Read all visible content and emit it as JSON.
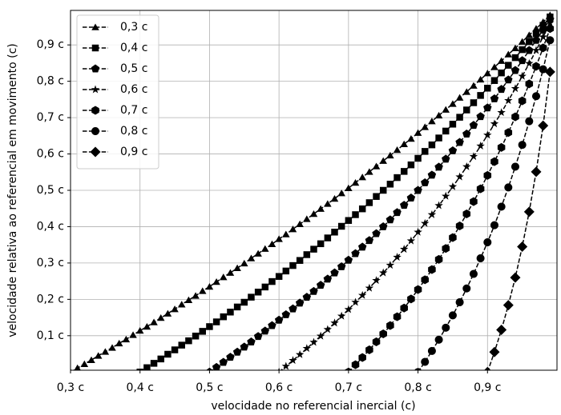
{
  "chart_data": {
    "type": "line",
    "xlabel": "velocidade no referencial inercial (c)",
    "ylabel": "velocidade relativa ao referencial em movimento (c)",
    "xlim": [
      0.3,
      1.0
    ],
    "ylim": [
      0.005,
      0.995
    ],
    "xticks": [
      {
        "value": 0.3,
        "label": "0,3 c"
      },
      {
        "value": 0.4,
        "label": "0,4 c"
      },
      {
        "value": 0.5,
        "label": "0,5 c"
      },
      {
        "value": 0.6,
        "label": "0,6 c"
      },
      {
        "value": 0.7,
        "label": "0,7 c"
      },
      {
        "value": 0.8,
        "label": "0,8 c"
      },
      {
        "value": 0.9,
        "label": "0,9 c"
      }
    ],
    "yticks": [
      {
        "value": 0.1,
        "label": "0,1 c"
      },
      {
        "value": 0.2,
        "label": "0,2 c"
      },
      {
        "value": 0.3,
        "label": "0,3 c"
      },
      {
        "value": 0.4,
        "label": "0,4 c"
      },
      {
        "value": 0.5,
        "label": "0,5 c"
      },
      {
        "value": 0.6,
        "label": "0,6 c"
      },
      {
        "value": 0.7,
        "label": "0,7 c"
      },
      {
        "value": 0.8,
        "label": "0,8 c"
      },
      {
        "value": 0.9,
        "label": "0,9 c"
      }
    ],
    "grid": true,
    "legend": "upper left",
    "series": [
      {
        "name": "0,3 c",
        "color": "#000000",
        "marker": "triangle",
        "x": [
          0.3,
          0.31,
          0.32,
          0.33,
          0.34,
          0.35,
          0.36,
          0.37,
          0.38,
          0.39,
          0.4,
          0.41,
          0.42,
          0.43,
          0.44,
          0.45,
          0.46,
          0.47,
          0.48,
          0.49,
          0.5,
          0.51,
          0.52,
          0.53,
          0.54,
          0.55,
          0.56,
          0.57,
          0.58,
          0.59,
          0.6,
          0.61,
          0.62,
          0.63,
          0.64,
          0.65,
          0.66,
          0.67,
          0.68,
          0.69,
          0.7,
          0.71,
          0.72,
          0.73,
          0.74,
          0.75,
          0.76,
          0.77,
          0.78,
          0.79,
          0.8,
          0.81,
          0.82,
          0.83,
          0.84,
          0.85,
          0.86,
          0.87,
          0.88,
          0.89,
          0.9,
          0.91,
          0.92,
          0.93,
          0.94,
          0.95,
          0.96,
          0.97,
          0.98,
          0.99
        ],
        "values": [
          0,
          0.011,
          0.022,
          0.033,
          0.045,
          0.056,
          0.067,
          0.079,
          0.09,
          0.102,
          0.114,
          0.125,
          0.137,
          0.149,
          0.161,
          0.173,
          0.186,
          0.198,
          0.21,
          0.223,
          0.235,
          0.248,
          0.261,
          0.273,
          0.286,
          0.299,
          0.313,
          0.326,
          0.339,
          0.352,
          0.366,
          0.379,
          0.393,
          0.407,
          0.421,
          0.435,
          0.449,
          0.463,
          0.477,
          0.492,
          0.506,
          0.521,
          0.536,
          0.551,
          0.566,
          0.581,
          0.596,
          0.611,
          0.627,
          0.642,
          0.658,
          0.674,
          0.69,
          0.706,
          0.722,
          0.738,
          0.755,
          0.771,
          0.788,
          0.805,
          0.822,
          0.839,
          0.856,
          0.874,
          0.891,
          0.909,
          0.927,
          0.945,
          0.963,
          0.982
        ]
      },
      {
        "name": "0,4 c",
        "color": "#000000",
        "marker": "square",
        "x": [
          0.4,
          0.41,
          0.42,
          0.43,
          0.44,
          0.45,
          0.46,
          0.47,
          0.48,
          0.49,
          0.5,
          0.51,
          0.52,
          0.53,
          0.54,
          0.55,
          0.56,
          0.57,
          0.58,
          0.59,
          0.6,
          0.61,
          0.62,
          0.63,
          0.64,
          0.65,
          0.66,
          0.67,
          0.68,
          0.69,
          0.7,
          0.71,
          0.72,
          0.73,
          0.74,
          0.75,
          0.76,
          0.77,
          0.78,
          0.79,
          0.8,
          0.81,
          0.82,
          0.83,
          0.84,
          0.85,
          0.86,
          0.87,
          0.88,
          0.89,
          0.9,
          0.91,
          0.92,
          0.93,
          0.94,
          0.95,
          0.96,
          0.97,
          0.98,
          0.99
        ],
        "values": [
          0,
          0.012,
          0.024,
          0.036,
          0.049,
          0.061,
          0.074,
          0.086,
          0.099,
          0.112,
          0.125,
          0.138,
          0.152,
          0.165,
          0.179,
          0.192,
          0.206,
          0.22,
          0.234,
          0.249,
          0.263,
          0.278,
          0.293,
          0.307,
          0.323,
          0.338,
          0.353,
          0.369,
          0.385,
          0.401,
          0.417,
          0.433,
          0.449,
          0.466,
          0.483,
          0.5,
          0.517,
          0.535,
          0.552,
          0.57,
          0.588,
          0.607,
          0.625,
          0.644,
          0.663,
          0.682,
          0.701,
          0.721,
          0.741,
          0.761,
          0.781,
          0.802,
          0.823,
          0.844,
          0.865,
          0.887,
          0.909,
          0.931,
          0.954,
          0.977
        ]
      },
      {
        "name": "0,5 c",
        "color": "#000000",
        "marker": "pentagon",
        "x": [
          0.5,
          0.51,
          0.52,
          0.53,
          0.54,
          0.55,
          0.56,
          0.57,
          0.58,
          0.59,
          0.6,
          0.61,
          0.62,
          0.63,
          0.64,
          0.65,
          0.66,
          0.67,
          0.68,
          0.69,
          0.7,
          0.71,
          0.72,
          0.73,
          0.74,
          0.75,
          0.76,
          0.77,
          0.78,
          0.79,
          0.8,
          0.81,
          0.82,
          0.83,
          0.84,
          0.85,
          0.86,
          0.87,
          0.88,
          0.89,
          0.9,
          0.91,
          0.92,
          0.93,
          0.94,
          0.95,
          0.96,
          0.97,
          0.98,
          0.99
        ],
        "values": [
          0,
          0.013,
          0.027,
          0.041,
          0.055,
          0.069,
          0.083,
          0.098,
          0.113,
          0.128,
          0.143,
          0.158,
          0.174,
          0.19,
          0.206,
          0.222,
          0.239,
          0.256,
          0.273,
          0.29,
          0.308,
          0.326,
          0.344,
          0.362,
          0.381,
          0.4,
          0.419,
          0.439,
          0.459,
          0.479,
          0.5,
          0.521,
          0.542,
          0.564,
          0.586,
          0.609,
          0.632,
          0.655,
          0.679,
          0.703,
          0.727,
          0.752,
          0.778,
          0.804,
          0.83,
          0.857,
          0.885,
          0.913,
          0.941,
          0.97
        ]
      },
      {
        "name": "0,6 c",
        "color": "#000000",
        "marker": "star",
        "x": [
          0.6,
          0.61,
          0.62,
          0.63,
          0.64,
          0.65,
          0.66,
          0.67,
          0.68,
          0.69,
          0.7,
          0.71,
          0.72,
          0.73,
          0.74,
          0.75,
          0.76,
          0.77,
          0.78,
          0.79,
          0.8,
          0.81,
          0.82,
          0.83,
          0.84,
          0.85,
          0.86,
          0.87,
          0.88,
          0.89,
          0.9,
          0.91,
          0.92,
          0.93,
          0.94,
          0.95,
          0.96,
          0.97,
          0.98,
          0.99
        ],
        "values": [
          0,
          0.016,
          0.032,
          0.048,
          0.065,
          0.082,
          0.099,
          0.117,
          0.135,
          0.154,
          0.172,
          0.192,
          0.211,
          0.231,
          0.252,
          0.273,
          0.294,
          0.316,
          0.338,
          0.361,
          0.385,
          0.409,
          0.433,
          0.458,
          0.484,
          0.51,
          0.537,
          0.565,
          0.593,
          0.622,
          0.652,
          0.683,
          0.714,
          0.747,
          0.78,
          0.814,
          0.849,
          0.885,
          0.922,
          0.961
        ]
      },
      {
        "name": "0,7 c",
        "color": "#000000",
        "marker": "hexagon",
        "x": [
          0.7,
          0.71,
          0.72,
          0.73,
          0.74,
          0.75,
          0.76,
          0.77,
          0.78,
          0.79,
          0.8,
          0.81,
          0.82,
          0.83,
          0.84,
          0.85,
          0.86,
          0.87,
          0.88,
          0.89,
          0.9,
          0.91,
          0.92,
          0.93,
          0.94,
          0.95,
          0.96,
          0.97,
          0.98,
          0.99
        ],
        "values": [
          0,
          0.02,
          0.04,
          0.061,
          0.083,
          0.105,
          0.128,
          0.152,
          0.176,
          0.201,
          0.227,
          0.254,
          0.282,
          0.31,
          0.34,
          0.37,
          0.402,
          0.435,
          0.469,
          0.504,
          0.541,
          0.579,
          0.618,
          0.659,
          0.702,
          0.746,
          0.793,
          0.841,
          0.892,
          0.945
        ]
      },
      {
        "name": "0,8 c",
        "color": "#000000",
        "marker": "circle",
        "x": [
          0.8,
          0.81,
          0.82,
          0.83,
          0.84,
          0.85,
          0.86,
          0.87,
          0.88,
          0.89,
          0.9,
          0.91,
          0.92,
          0.93,
          0.94,
          0.95,
          0.96,
          0.97,
          0.98,
          0.99
        ],
        "values": [
          0,
          0.028,
          0.058,
          0.089,
          0.122,
          0.156,
          0.192,
          0.23,
          0.27,
          0.313,
          0.357,
          0.404,
          0.455,
          0.508,
          0.565,
          0.625,
          0.69,
          0.759,
          0.833,
          0.913
        ]
      },
      {
        "name": "0,9 c",
        "color": "#000000",
        "marker": "diamond",
        "x": [
          0.9,
          0.91,
          0.92,
          0.93,
          0.94,
          0.95,
          0.96,
          0.97,
          0.98,
          0.99
        ],
        "values": [
          0,
          0.055,
          0.116,
          0.184,
          0.26,
          0.345,
          0.441,
          0.551,
          0.678,
          0.826
        ]
      }
    ]
  }
}
